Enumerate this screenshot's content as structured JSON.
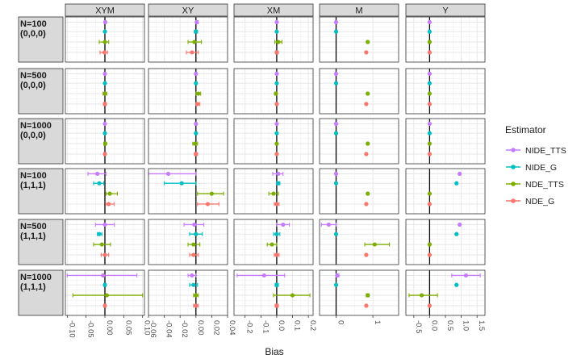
{
  "chart_data": {
    "type": "forest-plot",
    "xlabel": "Bias",
    "ylabel": "",
    "columns": [
      {
        "label": "XYM",
        "xlim": [
          -0.105,
          0.105
        ],
        "ticks": [
          -0.1,
          -0.05,
          0.0,
          0.05,
          0.1
        ],
        "tick_labels": [
          "-0.10",
          "-0.05",
          "0.00",
          "0.05",
          "0.10"
        ]
      },
      {
        "label": "XY",
        "xlim": [
          -0.06,
          0.04
        ],
        "ticks": [
          -0.06,
          -0.04,
          -0.02,
          0.0,
          0.02,
          0.04
        ],
        "tick_labels": [
          "-0.06",
          "-0.04",
          "-0.02",
          "0.00",
          "0.02",
          "0.04"
        ]
      },
      {
        "label": "XM",
        "xlim": [
          -0.27,
          0.23
        ],
        "ticks": [
          -0.2,
          -0.1,
          0.0,
          0.1,
          0.2
        ],
        "tick_labels": [
          "-0.2",
          "-0.1",
          "0.0",
          "0.1",
          "0.2"
        ]
      },
      {
        "label": "M",
        "xlim": [
          -0.45,
          1.7
        ],
        "ticks": [
          0,
          1
        ],
        "tick_labels": [
          "0",
          "1"
        ]
      },
      {
        "label": "Y",
        "xlim": [
          -0.75,
          1.75
        ],
        "ticks": [
          -0.5,
          0.0,
          0.5,
          1.0,
          1.5
        ],
        "tick_labels": [
          "-0.5",
          "0.0",
          "0.5",
          "1.0",
          "1.5"
        ]
      }
    ],
    "rows": [
      {
        "label_line1": "N=100",
        "label_line2": "(0,0,0)"
      },
      {
        "label_line1": "N=500",
        "label_line2": "(0,0,0)"
      },
      {
        "label_line1": "N=1000",
        "label_line2": "(0,0,0)"
      },
      {
        "label_line1": "N=100",
        "label_line2": "(1,1,1)"
      },
      {
        "label_line1": "N=500",
        "label_line2": "(1,1,1)"
      },
      {
        "label_line1": "N=1000",
        "label_line2": "(1,1,1)"
      }
    ],
    "legend": {
      "title": "Estimator",
      "position": "right",
      "series": [
        {
          "name": "NIDE_TTS",
          "color": "#C77CFF"
        },
        {
          "name": "NIDE_G",
          "color": "#00BFC4"
        },
        {
          "name": "NDE_TTS",
          "color": "#7CAE00"
        },
        {
          "name": "NDE_G",
          "color": "#F8766D"
        }
      ]
    },
    "estimates": [
      [
        [
          [
            0.001,
            -0.002,
            0.003
          ],
          [
            0.0,
            -0.001,
            0.001
          ],
          [
            0.0,
            -0.015,
            0.01
          ],
          [
            -0.001,
            -0.013,
            0.007
          ]
        ],
        [
          [
            0.001,
            0.0,
            0.003
          ],
          [
            0.0,
            -0.002,
            0.002
          ],
          [
            -0.002,
            -0.01,
            0.007
          ],
          [
            -0.005,
            -0.012,
            0.003
          ]
        ],
        [
          [
            0.0,
            -0.002,
            0.002
          ],
          [
            0.0,
            -0.002,
            0.002
          ],
          [
            0.01,
            -0.012,
            0.033
          ],
          [
            0.0,
            -0.008,
            0.01
          ]
        ],
        [
          [
            0.0,
            -0.02,
            0.02
          ],
          [
            0.0,
            -0.02,
            0.02
          ],
          [
            0.86,
            0.84,
            0.88
          ],
          [
            0.82,
            0.8,
            0.84
          ]
        ],
        [
          [
            0.0,
            -0.02,
            0.02
          ],
          [
            0.0,
            -0.02,
            0.02
          ],
          [
            0.0,
            -0.03,
            0.03
          ],
          [
            0.0,
            -0.02,
            0.02
          ]
        ]
      ],
      [
        [
          [
            0.0,
            -0.002,
            0.002
          ],
          [
            0.0,
            -0.001,
            0.001
          ],
          [
            0.0,
            -0.005,
            0.005
          ],
          [
            0.0,
            -0.004,
            0.004
          ]
        ],
        [
          [
            0.0,
            -0.001,
            0.001
          ],
          [
            0.0,
            -0.001,
            0.001
          ],
          [
            0.003,
            0.0,
            0.006
          ],
          [
            0.002,
            0.0,
            0.005
          ]
        ],
        [
          [
            0.0,
            -0.002,
            0.002
          ],
          [
            0.0,
            -0.002,
            0.002
          ],
          [
            -0.005,
            -0.013,
            0.003
          ],
          [
            0.0,
            -0.005,
            0.004
          ]
        ],
        [
          [
            0.0,
            -0.02,
            0.02
          ],
          [
            0.0,
            -0.02,
            0.02
          ],
          [
            0.86,
            0.84,
            0.88
          ],
          [
            0.82,
            0.8,
            0.84
          ]
        ],
        [
          [
            0.0,
            -0.01,
            0.01
          ],
          [
            0.0,
            -0.01,
            0.01
          ],
          [
            0.0,
            -0.02,
            0.02
          ],
          [
            0.0,
            -0.015,
            0.015
          ]
        ]
      ],
      [
        [
          [
            0.0,
            -0.001,
            0.001
          ],
          [
            0.0,
            -0.001,
            0.001
          ],
          [
            0.001,
            -0.003,
            0.004
          ],
          [
            0.0,
            -0.003,
            0.003
          ]
        ],
        [
          [
            0.0,
            -0.001,
            0.001
          ],
          [
            0.0,
            -0.001,
            0.001
          ],
          [
            -0.001,
            -0.004,
            0.002
          ],
          [
            0.0,
            -0.002,
            0.002
          ]
        ],
        [
          [
            0.0,
            -0.002,
            0.002
          ],
          [
            0.0,
            -0.002,
            0.002
          ],
          [
            0.0,
            -0.005,
            0.005
          ],
          [
            0.0,
            -0.003,
            0.003
          ]
        ],
        [
          [
            0.0,
            -0.02,
            0.02
          ],
          [
            0.0,
            -0.02,
            0.02
          ],
          [
            0.86,
            0.84,
            0.88
          ],
          [
            0.82,
            0.8,
            0.84
          ]
        ],
        [
          [
            0.0,
            -0.01,
            0.01
          ],
          [
            0.0,
            -0.01,
            0.01
          ],
          [
            0.0,
            -0.01,
            0.01
          ],
          [
            0.0,
            -0.01,
            0.01
          ]
        ]
      ],
      [
        [
          [
            -0.02,
            -0.045,
            0.003
          ],
          [
            -0.015,
            -0.03,
            -0.003
          ],
          [
            0.013,
            0.003,
            0.033
          ],
          [
            0.01,
            0.002,
            0.025
          ]
        ],
        [
          [
            -0.035,
            -0.06,
            0.0
          ],
          [
            -0.018,
            -0.04,
            0.0
          ],
          [
            0.02,
            0.002,
            0.035
          ],
          [
            0.015,
            0.002,
            0.029
          ]
        ],
        [
          [
            0.01,
            -0.025,
            0.04
          ],
          [
            0.01,
            0.0,
            0.02
          ],
          [
            -0.02,
            -0.05,
            0.01
          ],
          [
            0.0,
            -0.015,
            0.015
          ]
        ],
        [
          [
            0.0,
            -0.02,
            0.02
          ],
          [
            0.0,
            -0.01,
            0.01
          ],
          [
            0.86,
            0.84,
            0.88
          ],
          [
            0.82,
            0.8,
            0.84
          ]
        ],
        [
          [
            0.95,
            0.93,
            0.97
          ],
          [
            0.85,
            0.83,
            0.87
          ],
          [
            0.0,
            -0.02,
            0.02
          ],
          [
            0.0,
            -0.02,
            0.02
          ]
        ]
      ],
      [
        [
          [
            0.0,
            -0.025,
            0.025
          ],
          [
            -0.015,
            -0.02,
            -0.008
          ],
          [
            -0.008,
            -0.03,
            0.015
          ],
          [
            0.0,
            -0.01,
            0.01
          ]
        ],
        [
          [
            -0.002,
            -0.015,
            0.01
          ],
          [
            0.0,
            -0.008,
            0.008
          ],
          [
            -0.003,
            -0.01,
            0.005
          ],
          [
            -0.003,
            -0.008,
            0.003
          ]
        ],
        [
          [
            0.04,
            0.0,
            0.08
          ],
          [
            0.0,
            -0.02,
            0.02
          ],
          [
            -0.03,
            -0.06,
            0.0
          ],
          [
            0.0,
            -0.015,
            0.015
          ]
        ],
        [
          [
            -0.2,
            -0.4,
            0.0
          ],
          [
            0.0,
            -0.01,
            0.01
          ],
          [
            1.05,
            0.78,
            1.45
          ],
          [
            0.82,
            0.8,
            0.84
          ]
        ],
        [
          [
            0.95,
            0.93,
            0.97
          ],
          [
            0.85,
            0.83,
            0.87
          ],
          [
            0.0,
            -0.02,
            0.02
          ],
          [
            0.0,
            -0.02,
            0.02
          ]
        ]
      ],
      [
        [
          [
            -0.005,
            -0.1,
            0.085
          ],
          [
            0.0,
            -0.003,
            0.003
          ],
          [
            0.005,
            -0.085,
            0.1
          ],
          [
            0.0,
            -0.003,
            0.003
          ]
        ],
        [
          [
            -0.005,
            -0.01,
            0.0
          ],
          [
            -0.003,
            -0.008,
            0.002
          ],
          [
            0.0,
            -0.003,
            0.003
          ],
          [
            0.0,
            -0.003,
            0.003
          ]
        ],
        [
          [
            -0.08,
            -0.25,
            0.05
          ],
          [
            0.0,
            -0.01,
            0.01
          ],
          [
            0.1,
            -0.02,
            0.21
          ],
          [
            0.0,
            -0.01,
            0.01
          ]
        ],
        [
          [
            0.03,
            0.0,
            0.08
          ],
          [
            0.0,
            -0.01,
            0.01
          ],
          [
            0.86,
            0.82,
            0.9
          ],
          [
            0.82,
            0.8,
            0.84
          ]
        ],
        [
          [
            1.15,
            0.7,
            1.6
          ],
          [
            0.85,
            0.83,
            0.87
          ],
          [
            -0.25,
            -0.65,
            0.25
          ],
          [
            0.0,
            -0.02,
            0.02
          ]
        ]
      ]
    ]
  }
}
